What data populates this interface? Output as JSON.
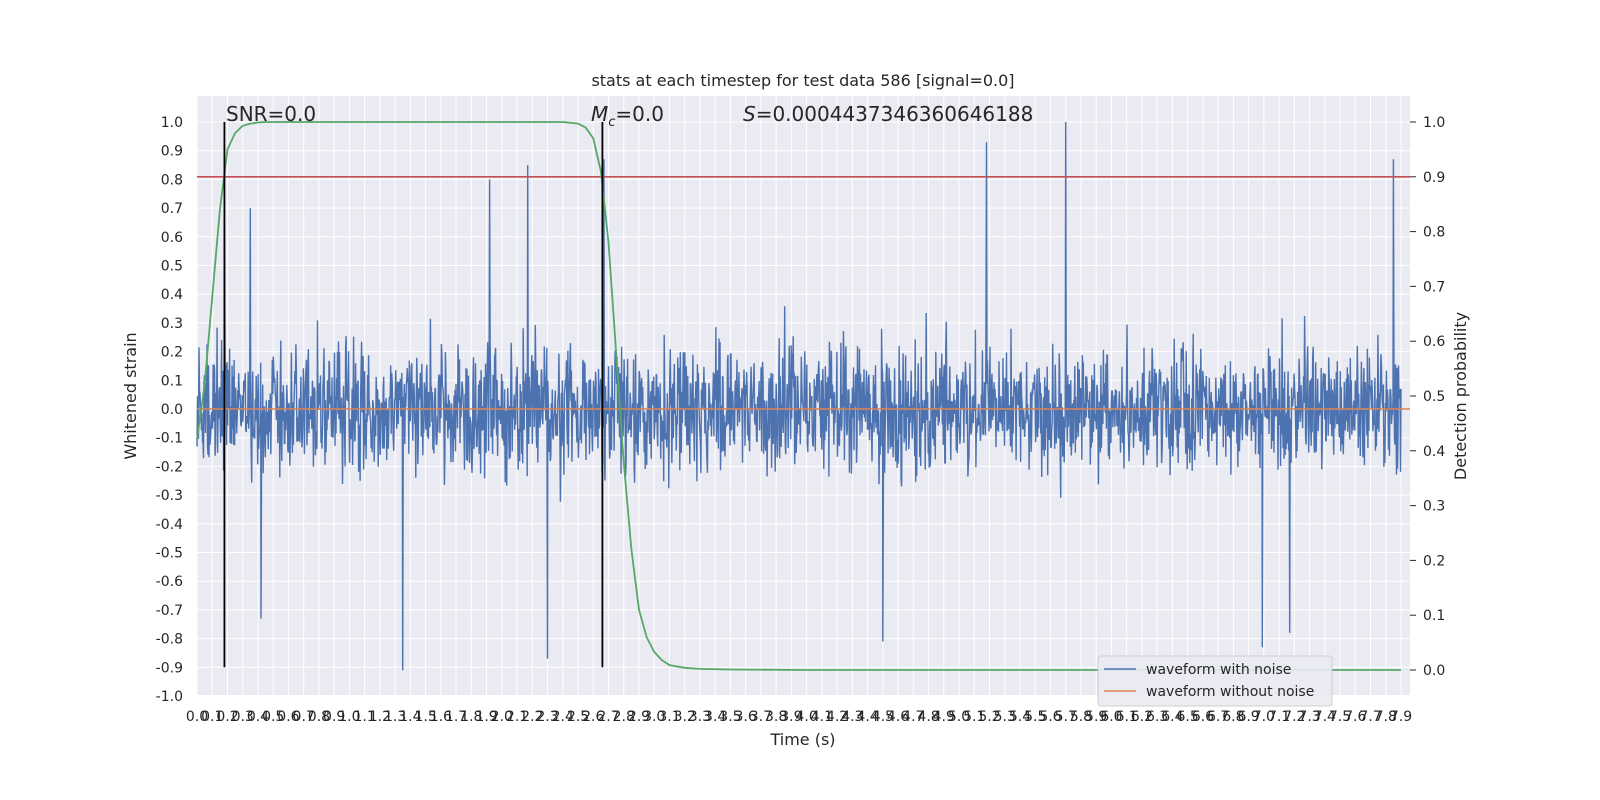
{
  "chart_data": {
    "type": "line",
    "title": "stats at each timestep for test data 586 [signal=0.0]",
    "xlabel": "Time (s)",
    "ylabel_left": "Whitened strain",
    "ylabel_right": "Detection probability",
    "xlim": [
      0.0,
      7.9
    ],
    "ylim_left": [
      -1.0,
      1.0
    ],
    "ylim_right": [
      0.0,
      1.0
    ],
    "grid": true,
    "annotations": {
      "snr": "SNR=0.0",
      "mc_symbol": "M",
      "mc_sub": "c",
      "mc_value": "=0.0",
      "s_symbol": "S",
      "s_value": "=0.0004437346360646188"
    },
    "x_ticks": [
      "0.0",
      "0.1",
      "0.2",
      "0.3",
      "0.4",
      "0.5",
      "0.6",
      "0.7",
      "0.8",
      "0.9",
      "1.0",
      "1.1",
      "1.2",
      "1.3",
      "1.4",
      "1.5",
      "1.6",
      "1.7",
      "1.8",
      "1.9",
      "2.0",
      "2.1",
      "2.2",
      "2.3",
      "2.4",
      "2.5",
      "2.6",
      "2.7",
      "2.8",
      "2.9",
      "3.0",
      "3.1",
      "3.2",
      "3.3",
      "3.4",
      "3.5",
      "3.6",
      "3.7",
      "3.8",
      "3.9",
      "4.0",
      "4.1",
      "4.2",
      "4.3",
      "4.4",
      "4.5",
      "4.6",
      "4.7",
      "4.8",
      "4.9",
      "5.0",
      "5.1",
      "5.2",
      "5.3",
      "5.4",
      "5.5",
      "5.6",
      "5.7",
      "5.8",
      "5.9",
      "6.0",
      "6.1",
      "6.2",
      "6.3",
      "6.4",
      "6.5",
      "6.6",
      "6.7",
      "6.8",
      "6.9",
      "7.0",
      "7.1",
      "7.2",
      "7.3",
      "7.4",
      "7.5",
      "7.6",
      "7.7",
      "7.8",
      "7.9"
    ],
    "y_ticks_left": [
      "-1.0",
      "-0.9",
      "-0.8",
      "-0.7",
      "-0.6",
      "-0.5",
      "-0.4",
      "-0.3",
      "-0.2",
      "-0.1",
      "0.0",
      "0.1",
      "0.2",
      "0.3",
      "0.4",
      "0.5",
      "0.6",
      "0.7",
      "0.8",
      "0.9",
      "1.0"
    ],
    "y_ticks_right": [
      "0.0",
      "0.1",
      "0.2",
      "0.3",
      "0.4",
      "0.5",
      "0.6",
      "0.7",
      "0.8",
      "0.9",
      "1.0"
    ],
    "vertical_markers_x": [
      0.18,
      2.66
    ],
    "threshold_probability": 0.9,
    "series": [
      {
        "name": "waveform with noise",
        "color": "#4c72b0",
        "axis": "left",
        "description_stats": {
          "typical_abs_max": 0.4,
          "min": -0.91,
          "max": 1.0
        },
        "peaks": [
          [
            0.18,
            0.63
          ],
          [
            0.35,
            0.7
          ],
          [
            1.92,
            0.8
          ],
          [
            2.17,
            0.85
          ],
          [
            2.67,
            0.87
          ],
          [
            5.18,
            0.93
          ],
          [
            5.7,
            1.0
          ],
          [
            7.85,
            0.87
          ]
        ],
        "troughs": [
          [
            0.42,
            -0.73
          ],
          [
            1.35,
            -0.91
          ],
          [
            2.3,
            -0.87
          ],
          [
            4.5,
            -0.81
          ],
          [
            6.99,
            -0.83
          ],
          [
            7.17,
            -0.78
          ]
        ]
      },
      {
        "name": "waveform without noise",
        "color": "#dd8452",
        "axis": "left",
        "x": [
          0.0,
          7.9
        ],
        "y": [
          0.0,
          0.0
        ]
      },
      {
        "color": "#55a868",
        "axis": "right",
        "x": [
          0.0,
          0.05,
          0.1,
          0.15,
          0.2,
          0.25,
          0.3,
          0.35,
          0.4,
          0.45,
          0.5,
          0.6,
          0.8,
          1.0,
          1.5,
          2.0,
          2.3,
          2.4,
          2.5,
          2.55,
          2.6,
          2.65,
          2.7,
          2.75,
          2.8,
          2.85,
          2.9,
          2.95,
          3.0,
          3.05,
          3.1,
          3.2,
          3.3,
          3.5,
          4.0,
          5.0,
          6.0,
          7.0,
          7.9
        ],
        "y": [
          0.42,
          0.52,
          0.68,
          0.84,
          0.95,
          0.98,
          0.993,
          0.997,
          0.999,
          1.0,
          1.0,
          1.0,
          1.0,
          1.0,
          1.0,
          1.0,
          1.0,
          1.0,
          0.997,
          0.99,
          0.97,
          0.91,
          0.78,
          0.58,
          0.38,
          0.22,
          0.11,
          0.06,
          0.033,
          0.018,
          0.009,
          0.004,
          0.002,
          0.001,
          0.0,
          0.0,
          0.0,
          0.0,
          0.0
        ]
      },
      {
        "color": "#c44e52",
        "axis": "right",
        "x": [
          0.0,
          7.9
        ],
        "y": [
          0.9,
          0.9
        ]
      }
    ],
    "legend": {
      "placement": "lower right",
      "entries": [
        "waveform with noise",
        "waveform without noise"
      ]
    }
  }
}
